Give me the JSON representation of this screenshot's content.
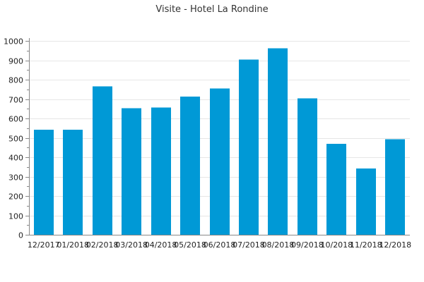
{
  "chart_data": {
    "type": "bar",
    "title": "Visite - Hotel La Rondine",
    "xlabel": "",
    "ylabel": "",
    "categories": [
      "12/2017",
      "01/2018",
      "02/2018",
      "03/2018",
      "04/2018",
      "05/2018",
      "06/2018",
      "07/2018",
      "08/2018",
      "09/2018",
      "10/2018",
      "11/2018",
      "12/2018"
    ],
    "values": [
      541,
      541,
      765,
      653,
      657,
      712,
      755,
      903,
      962,
      704,
      469,
      341,
      493
    ],
    "ylim": [
      0,
      1000
    ],
    "yticks": [
      "0",
      "100",
      "200",
      "300",
      "400",
      "500",
      "600",
      "700",
      "800",
      "900",
      "1000"
    ],
    "grid": true,
    "legend": "none",
    "bar_color": "#0099d6"
  }
}
